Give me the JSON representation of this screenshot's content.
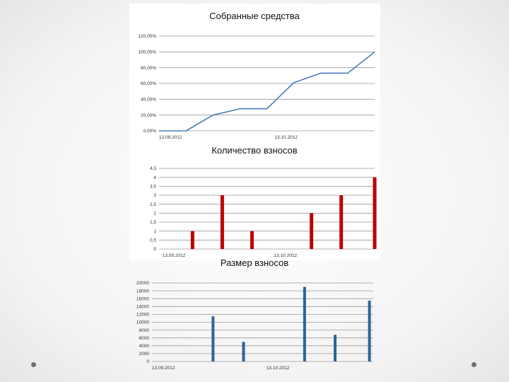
{
  "chart_data": [
    {
      "type": "line",
      "title": "Собранные средства",
      "xlabel": "",
      "ylabel": "",
      "y_ticks": [
        "120,00%",
        "100,00%",
        "80,00%",
        "60,00%",
        "40,00%",
        "20,00%",
        "0,00%"
      ],
      "ylim": [
        0,
        120
      ],
      "x_ticks": [
        "13.09.2012",
        "13.10.2012"
      ],
      "grid": true,
      "color": "#4a7ebb",
      "series": [
        {
          "x": [
            "2012-09-13",
            "2012-09-20",
            "2012-09-27",
            "2012-10-04",
            "2012-10-11",
            "2012-10-18",
            "2012-10-25",
            "2012-11-01",
            "2012-11-08"
          ],
          "values": [
            0,
            0,
            20,
            28,
            28,
            61,
            73,
            73,
            100
          ]
        }
      ]
    },
    {
      "type": "bar",
      "title": "Количество взносов",
      "xlabel": "",
      "ylabel": "",
      "y_ticks": [
        "4,5",
        "4",
        "3,5",
        "3",
        "2,5",
        "2",
        "1,5",
        "1",
        "0,5",
        "0"
      ],
      "ylim": [
        0,
        4.5
      ],
      "x_ticks": [
        "13.09.2012",
        "13.10.2012"
      ],
      "grid": true,
      "color": "#c00000",
      "series": [
        {
          "x": [
            "2012-09-18",
            "2012-09-26",
            "2012-10-04",
            "2012-10-20",
            "2012-10-28",
            "2012-11-06"
          ],
          "values": [
            1,
            3,
            1,
            2,
            3,
            4
          ]
        }
      ]
    },
    {
      "type": "bar",
      "title": "Размер взносов",
      "xlabel": "",
      "ylabel": "",
      "y_ticks": [
        "20000",
        "18000",
        "16000",
        "14000",
        "12000",
        "10000",
        "8000",
        "6000",
        "4000",
        "2000",
        "0"
      ],
      "ylim": [
        0,
        20000
      ],
      "x_ticks": [
        "13.09.2012",
        "13.10.2012"
      ],
      "grid": true,
      "color": "#2e6496",
      "series": [
        {
          "x": [
            "2012-09-26",
            "2012-10-04",
            "2012-10-20",
            "2012-10-28",
            "2012-11-06"
          ],
          "values": [
            11500,
            5000,
            19000,
            6800,
            15500
          ]
        }
      ]
    }
  ]
}
